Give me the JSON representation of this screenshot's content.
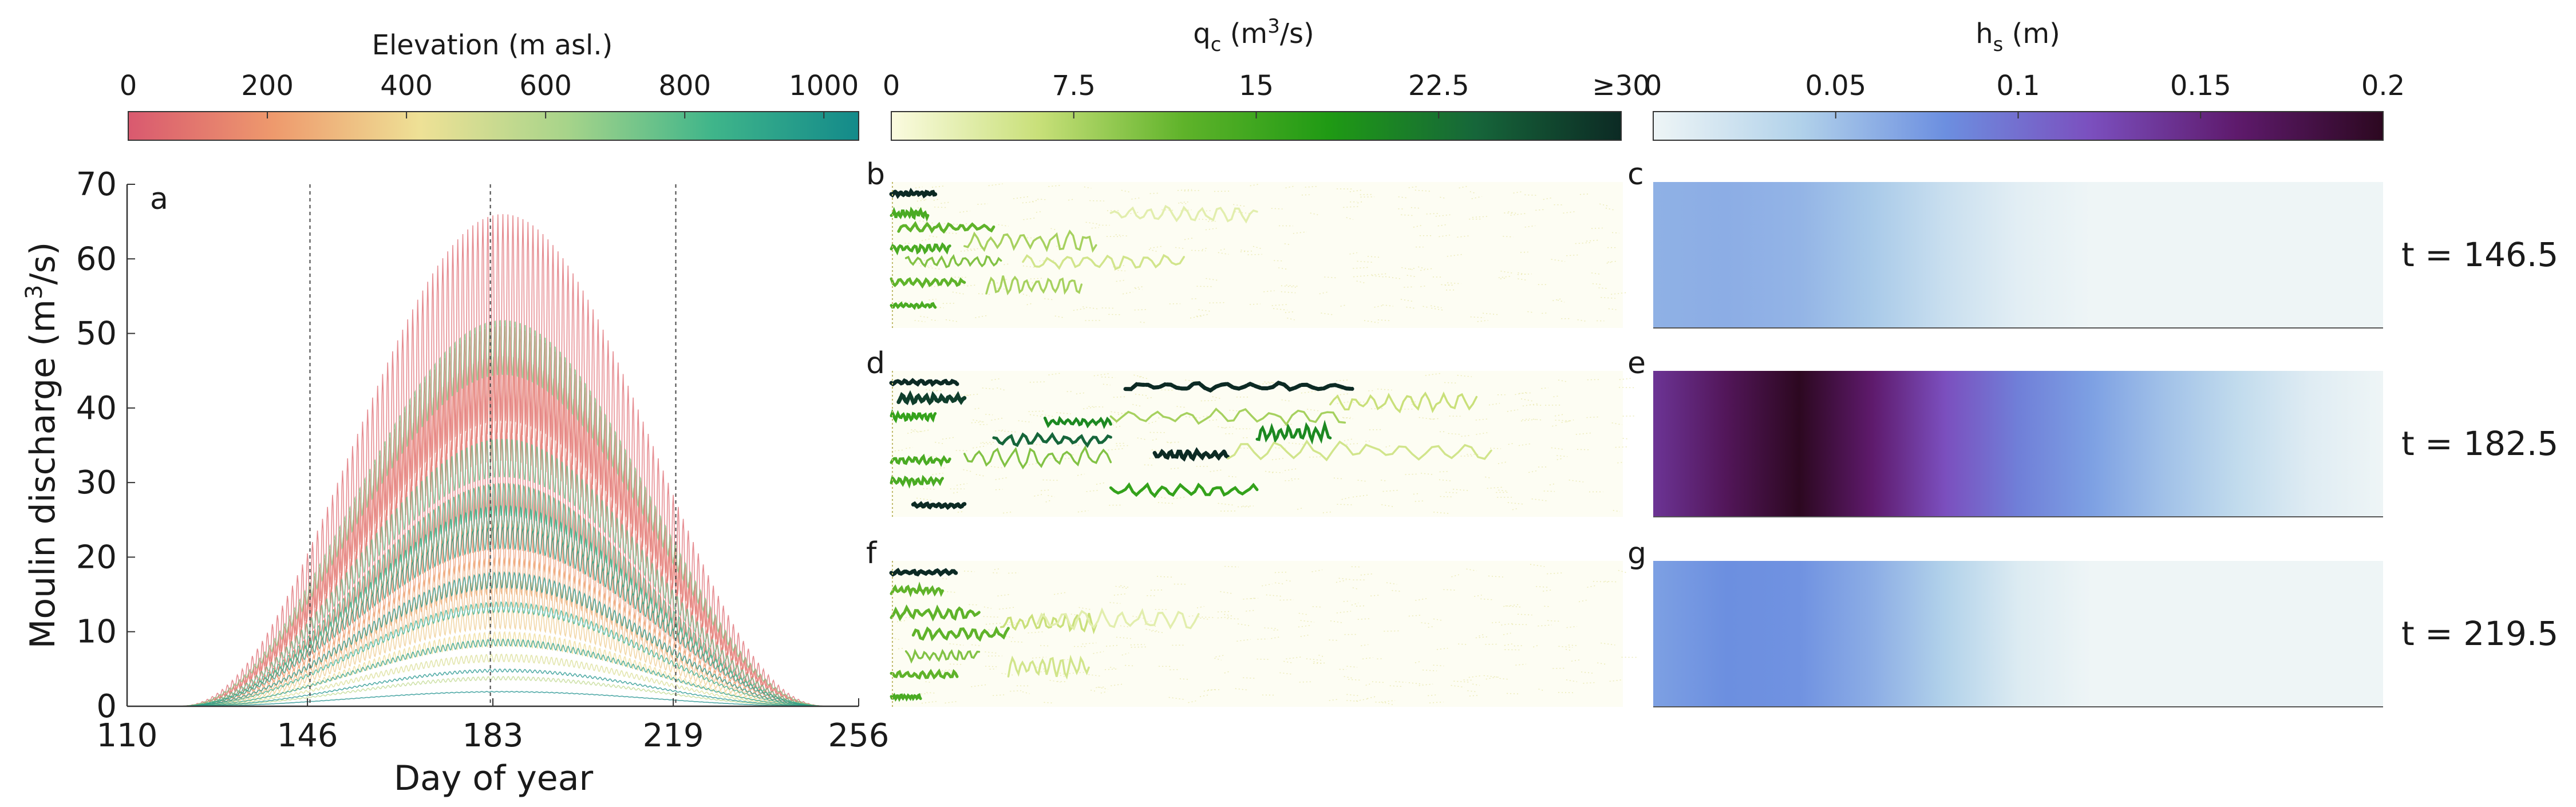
{
  "colorbars": {
    "elevation": {
      "title": "Elevation (m asl.)",
      "ticks": [
        "0",
        "200",
        "400",
        "600",
        "800",
        "1000"
      ],
      "tick_values": [
        0,
        200,
        400,
        600,
        800,
        1000
      ],
      "range": [
        0,
        1050
      ],
      "colors": [
        "#d9596f",
        "#ee9a6d",
        "#eee196",
        "#a7d48a",
        "#3fb58a",
        "#138a8a"
      ]
    },
    "qc": {
      "title_main": "q",
      "title_sub": "c",
      "title_rest": " (m",
      "title_sup": "3",
      "title_end": "/s)",
      "ticks": [
        "0",
        "7.5",
        "15",
        "22.5",
        "≥30"
      ],
      "tick_values": [
        0,
        7.5,
        15,
        22.5,
        30
      ],
      "range": [
        0,
        30
      ],
      "colors": [
        "#fbfbe0",
        "#c9e07a",
        "#5fb32a",
        "#1f9a14",
        "#16663a",
        "#0c2a24"
      ]
    },
    "hs": {
      "title_main": "h",
      "title_sub": "s",
      "title_end": " (m)",
      "ticks": [
        "0",
        "0.05",
        "0.1",
        "0.15",
        "0.2"
      ],
      "tick_values": [
        0,
        0.05,
        0.1,
        0.15,
        0.2
      ],
      "range": [
        0,
        0.2
      ],
      "colors": [
        "#eef5f6",
        "#b2d2ea",
        "#6c8fe0",
        "#7b4fbe",
        "#5e1a6c",
        "#2c0820"
      ]
    }
  },
  "panel_labels": [
    "a",
    "b",
    "c",
    "d",
    "e",
    "f",
    "g"
  ],
  "time_labels": [
    "t = 146.5",
    "t = 182.5",
    "t = 219.5"
  ],
  "chart_data": [
    {
      "panel": "a",
      "type": "line",
      "xlabel": "Day of year",
      "ylabel_main": "Moulin discharge (m",
      "ylabel_sup": "3",
      "ylabel_end": "/s)",
      "xlim": [
        110,
        256
      ],
      "ylim": [
        0,
        70
      ],
      "xticks": [
        110,
        146,
        183,
        219,
        256
      ],
      "yticks": [
        0,
        10,
        20,
        30,
        40,
        50,
        60,
        70
      ],
      "vertical_lines_day": [
        146.5,
        182.5,
        219.5
      ],
      "curve_shape": "sin-squared envelope between day 120 and 250, peak near day 185, with diurnal oscillation",
      "series": [
        {
          "elevation": 50,
          "peak": 66,
          "amplitude": 0.42
        },
        {
          "elevation": 80,
          "peak": 51,
          "amplitude": 0.28
        },
        {
          "elevation": 60,
          "peak": 38,
          "amplitude": 0.35
        },
        {
          "elevation": 120,
          "peak": 47,
          "amplitude": 0.3
        },
        {
          "elevation": 150,
          "peak": 30,
          "amplitude": 0.3
        },
        {
          "elevation": 200,
          "peak": 25,
          "amplitude": 0.25
        },
        {
          "elevation": 250,
          "peak": 20,
          "amplitude": 0.25
        },
        {
          "elevation": 300,
          "peak": 17,
          "amplitude": 0.22
        },
        {
          "elevation": 350,
          "peak": 13,
          "amplitude": 0.2
        },
        {
          "elevation": 400,
          "peak": 10,
          "amplitude": 0.2
        },
        {
          "elevation": 480,
          "peak": 7,
          "amplitude": 0.15
        },
        {
          "elevation": 560,
          "peak": 4,
          "amplitude": 0.12
        },
        {
          "elevation": 700,
          "peak": 52,
          "amplitude": 0.15
        },
        {
          "elevation": 760,
          "peak": 36,
          "amplitude": 0.15
        },
        {
          "elevation": 820,
          "peak": 30,
          "amplitude": 0.15
        },
        {
          "elevation": 880,
          "peak": 27,
          "amplitude": 0.12
        },
        {
          "elevation": 940,
          "peak": 24,
          "amplitude": 0.12
        },
        {
          "elevation": 1000,
          "peak": 18,
          "amplitude": 0.12
        },
        {
          "elevation": 900,
          "peak": 14,
          "amplitude": 0.1
        },
        {
          "elevation": 960,
          "peak": 9,
          "amplitude": 0.1
        },
        {
          "elevation": 1020,
          "peak": 5,
          "amplitude": 0.08
        },
        {
          "elevation": 1040,
          "peak": 2,
          "amplitude": 0.05
        }
      ]
    },
    {
      "panels": [
        "b",
        "d",
        "f"
      ],
      "type": "heatmap",
      "variable": "channel discharge q_c (m3/s)",
      "rows": [
        {
          "panel": "b",
          "t": 146.5,
          "channels": [
            {
              "x0": 0.0,
              "x1": 0.06,
              "y": 0.05,
              "q": 30,
              "wiggle": 0.01
            },
            {
              "x0": 0.0,
              "x1": 0.05,
              "y": 0.2,
              "q": 14,
              "wiggle": 0.02
            },
            {
              "x0": 0.01,
              "x1": 0.14,
              "y": 0.3,
              "q": 12,
              "wiggle": 0.02
            },
            {
              "x0": 0.0,
              "x1": 0.08,
              "y": 0.45,
              "q": 14,
              "wiggle": 0.02
            },
            {
              "x0": 0.02,
              "x1": 0.15,
              "y": 0.55,
              "q": 10,
              "wiggle": 0.03
            },
            {
              "x0": 0.0,
              "x1": 0.1,
              "y": 0.7,
              "q": 12,
              "wiggle": 0.02
            },
            {
              "x0": 0.0,
              "x1": 0.06,
              "y": 0.87,
              "q": 14,
              "wiggle": 0.01
            },
            {
              "x0": 0.1,
              "x1": 0.28,
              "y": 0.4,
              "q": 8,
              "wiggle": 0.05
            },
            {
              "x0": 0.13,
              "x1": 0.26,
              "y": 0.72,
              "q": 8,
              "wiggle": 0.05
            },
            {
              "x0": 0.18,
              "x1": 0.4,
              "y": 0.55,
              "q": 5,
              "wiggle": 0.04
            },
            {
              "x0": 0.3,
              "x1": 0.5,
              "y": 0.2,
              "q": 3,
              "wiggle": 0.04
            }
          ]
        },
        {
          "panel": "d",
          "t": 182.5,
          "channels": [
            {
              "x0": 0.0,
              "x1": 0.09,
              "y": 0.05,
              "q": 30,
              "wiggle": 0.01
            },
            {
              "x0": 0.32,
              "x1": 0.63,
              "y": 0.08,
              "q": 30,
              "wiggle": 0.02
            },
            {
              "x0": 0.01,
              "x1": 0.1,
              "y": 0.17,
              "q": 28,
              "wiggle": 0.02
            },
            {
              "x0": 0.0,
              "x1": 0.06,
              "y": 0.3,
              "q": 16,
              "wiggle": 0.02
            },
            {
              "x0": 0.14,
              "x1": 0.3,
              "y": 0.47,
              "q": 24,
              "wiggle": 0.03
            },
            {
              "x0": 0.21,
              "x1": 0.3,
              "y": 0.34,
              "q": 20,
              "wiggle": 0.02
            },
            {
              "x0": 0.36,
              "x1": 0.46,
              "y": 0.58,
              "q": 30,
              "wiggle": 0.02
            },
            {
              "x0": 0.5,
              "x1": 0.6,
              "y": 0.42,
              "q": 20,
              "wiggle": 0.04
            },
            {
              "x0": 0.0,
              "x1": 0.08,
              "y": 0.62,
              "q": 14,
              "wiggle": 0.02
            },
            {
              "x0": 0.0,
              "x1": 0.07,
              "y": 0.77,
              "q": 14,
              "wiggle": 0.02
            },
            {
              "x0": 0.03,
              "x1": 0.1,
              "y": 0.95,
              "q": 30,
              "wiggle": 0.01
            },
            {
              "x0": 0.3,
              "x1": 0.5,
              "y": 0.84,
              "q": 16,
              "wiggle": 0.03
            },
            {
              "x0": 0.1,
              "x1": 0.3,
              "y": 0.6,
              "q": 10,
              "wiggle": 0.05
            },
            {
              "x0": 0.3,
              "x1": 0.62,
              "y": 0.3,
              "q": 8,
              "wiggle": 0.04
            },
            {
              "x0": 0.46,
              "x1": 0.82,
              "y": 0.55,
              "q": 5,
              "wiggle": 0.05
            },
            {
              "x0": 0.6,
              "x1": 0.8,
              "y": 0.2,
              "q": 6,
              "wiggle": 0.05
            }
          ]
        },
        {
          "panel": "f",
          "t": 219.5,
          "channels": [
            {
              "x0": 0.0,
              "x1": 0.09,
              "y": 0.05,
              "q": 30,
              "wiggle": 0.01
            },
            {
              "x0": 0.0,
              "x1": 0.07,
              "y": 0.18,
              "q": 12,
              "wiggle": 0.02
            },
            {
              "x0": 0.0,
              "x1": 0.12,
              "y": 0.35,
              "q": 12,
              "wiggle": 0.03
            },
            {
              "x0": 0.03,
              "x1": 0.16,
              "y": 0.5,
              "q": 12,
              "wiggle": 0.03
            },
            {
              "x0": 0.02,
              "x1": 0.12,
              "y": 0.66,
              "q": 10,
              "wiggle": 0.03
            },
            {
              "x0": 0.0,
              "x1": 0.09,
              "y": 0.8,
              "q": 12,
              "wiggle": 0.02
            },
            {
              "x0": 0.0,
              "x1": 0.04,
              "y": 0.96,
              "q": 14,
              "wiggle": 0.01
            },
            {
              "x0": 0.15,
              "x1": 0.28,
              "y": 0.42,
              "q": 6,
              "wiggle": 0.05
            },
            {
              "x0": 0.16,
              "x1": 0.27,
              "y": 0.74,
              "q": 5,
              "wiggle": 0.05
            },
            {
              "x0": 0.2,
              "x1": 0.42,
              "y": 0.4,
              "q": 3,
              "wiggle": 0.05
            }
          ]
        }
      ]
    },
    {
      "panels": [
        "c",
        "e",
        "g"
      ],
      "type": "heatmap",
      "variable": "sheet thickness h_s (m)",
      "rows": [
        {
          "panel": "c",
          "t": 146.5,
          "hs_at_x": {
            "x": [
              0.0,
              0.1,
              0.2,
              0.3,
              0.4,
              0.5,
              0.6,
              1.0
            ],
            "hs": [
              0.06,
              0.062,
              0.058,
              0.045,
              0.025,
              0.008,
              0.0,
              0.0
            ]
          }
        },
        {
          "panel": "e",
          "t": 182.5,
          "hs_at_x": {
            "x": [
              0.0,
              0.1,
              0.2,
              0.3,
              0.4,
              0.5,
              0.6,
              0.7,
              0.8,
              0.9,
              1.0
            ],
            "hs": [
              0.14,
              0.17,
              0.2,
              0.16,
              0.12,
              0.09,
              0.07,
              0.05,
              0.03,
              0.01,
              0.0
            ]
          }
        },
        {
          "panel": "g",
          "t": 219.5,
          "hs_at_x": {
            "x": [
              0.0,
              0.1,
              0.2,
              0.3,
              0.4,
              0.5,
              0.6,
              1.0
            ],
            "hs": [
              0.07,
              0.08,
              0.078,
              0.062,
              0.04,
              0.012,
              0.0,
              0.0
            ]
          }
        }
      ]
    }
  ]
}
